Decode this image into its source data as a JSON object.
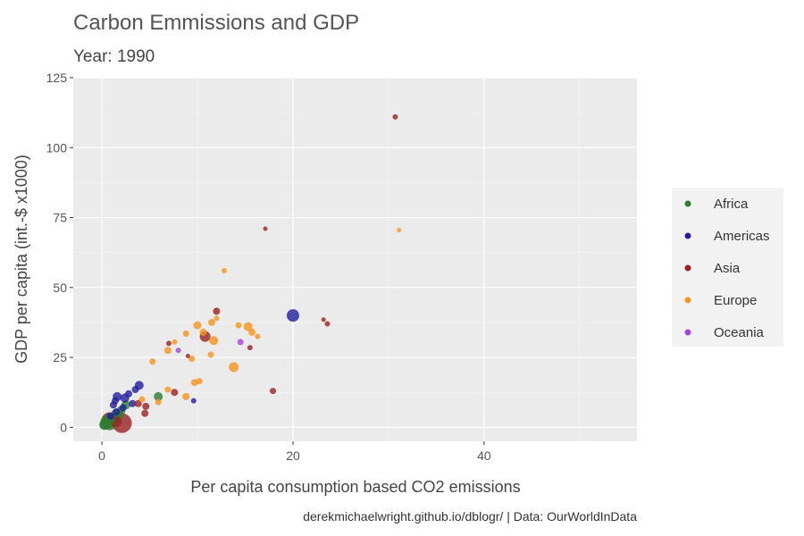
{
  "chart_data": {
    "type": "scatter",
    "title": "Carbon Emmissions and GDP",
    "subtitle": "Year: 1990",
    "xlabel": "Per capita consumption based CO2 emissions",
    "ylabel": "GDP per capita (int.-$ x1000)",
    "caption": "derekmichaelwright.github.io/dblogr/ | Data: OurWorldInData",
    "xlim": [
      -3,
      56
    ],
    "ylim": [
      -5,
      125
    ],
    "x_ticks": [
      0,
      20,
      40
    ],
    "x_tick_labels": [
      "0",
      "20",
      "40"
    ],
    "y_ticks": [
      0,
      25,
      50,
      75,
      100,
      125
    ],
    "y_tick_labels": [
      "0",
      "25",
      "50",
      "75",
      "100",
      "125"
    ],
    "grid": true,
    "legend_position": "right",
    "series": [
      {
        "name": "Africa",
        "color": "#2E7D32",
        "points": [
          {
            "x": 0.3,
            "y": 1,
            "s": 6
          },
          {
            "x": 0.5,
            "y": 2,
            "s": 7
          },
          {
            "x": 0.8,
            "y": 1.5,
            "s": 8
          },
          {
            "x": 1.2,
            "y": 3,
            "s": 6
          },
          {
            "x": 1.6,
            "y": 4.5,
            "s": 7
          },
          {
            "x": 2.0,
            "y": 6,
            "s": 5
          },
          {
            "x": 2.5,
            "y": 8,
            "s": 5
          },
          {
            "x": 0.2,
            "y": 0.8,
            "s": 5
          },
          {
            "x": 5.9,
            "y": 11,
            "s": 5
          },
          {
            "x": 1.0,
            "y": 2.5,
            "s": 4
          },
          {
            "x": 1.8,
            "y": 5,
            "s": 4
          },
          {
            "x": 0.6,
            "y": 3.5,
            "s": 4
          }
        ]
      },
      {
        "name": "Americas",
        "color": "#1F1FA0",
        "points": [
          {
            "x": 20,
            "y": 40,
            "s": 7
          },
          {
            "x": 3.9,
            "y": 15,
            "s": 5
          },
          {
            "x": 1.6,
            "y": 11,
            "s": 5
          },
          {
            "x": 2.4,
            "y": 10.5,
            "s": 5
          },
          {
            "x": 1.2,
            "y": 8,
            "s": 4
          },
          {
            "x": 3.5,
            "y": 13.5,
            "s": 4
          },
          {
            "x": 9.6,
            "y": 9.5,
            "s": 3
          },
          {
            "x": 3.2,
            "y": 8.5,
            "s": 4
          },
          {
            "x": 2.2,
            "y": 7,
            "s": 4
          },
          {
            "x": 1.5,
            "y": 5.5,
            "s": 4
          },
          {
            "x": 0.9,
            "y": 4,
            "s": 4
          },
          {
            "x": 2.8,
            "y": 12,
            "s": 4
          },
          {
            "x": 1.4,
            "y": 9.5,
            "s": 4
          }
        ]
      },
      {
        "name": "Asia",
        "color": "#9B2222",
        "points": [
          {
            "x": 2.1,
            "y": 1.5,
            "s": 11
          },
          {
            "x": 0.8,
            "y": 2.5,
            "s": 9
          },
          {
            "x": 30.7,
            "y": 111,
            "s": 3
          },
          {
            "x": 17.1,
            "y": 71,
            "s": 2.5
          },
          {
            "x": 23.6,
            "y": 37,
            "s": 3
          },
          {
            "x": 23.2,
            "y": 38.5,
            "s": 2.5
          },
          {
            "x": 10.8,
            "y": 32.5,
            "s": 6
          },
          {
            "x": 12,
            "y": 41.5,
            "s": 4
          },
          {
            "x": 7.6,
            "y": 12.5,
            "s": 4
          },
          {
            "x": 17.9,
            "y": 13,
            "s": 3.5
          },
          {
            "x": 15.5,
            "y": 28.5,
            "s": 3
          },
          {
            "x": 7,
            "y": 30,
            "s": 3
          },
          {
            "x": 9.0,
            "y": 25.5,
            "s": 2.5
          },
          {
            "x": 4.5,
            "y": 5,
            "s": 4
          },
          {
            "x": 4.6,
            "y": 7.5,
            "s": 4
          },
          {
            "x": 3.8,
            "y": 8.5,
            "s": 4
          },
          {
            "x": 1.5,
            "y": 2,
            "s": 6
          }
        ]
      },
      {
        "name": "Europe",
        "color": "#F7941D",
        "points": [
          {
            "x": 31.1,
            "y": 70.5,
            "s": 2.5
          },
          {
            "x": 12.8,
            "y": 56,
            "s": 3
          },
          {
            "x": 10,
            "y": 36.5,
            "s": 4.5
          },
          {
            "x": 11.5,
            "y": 37.5,
            "s": 4
          },
          {
            "x": 12,
            "y": 39,
            "s": 3
          },
          {
            "x": 15.3,
            "y": 36,
            "s": 5
          },
          {
            "x": 15.7,
            "y": 34,
            "s": 4
          },
          {
            "x": 16.3,
            "y": 32.5,
            "s": 3
          },
          {
            "x": 14.3,
            "y": 36.5,
            "s": 3.5
          },
          {
            "x": 10.6,
            "y": 34,
            "s": 4
          },
          {
            "x": 11.7,
            "y": 31,
            "s": 5
          },
          {
            "x": 8.8,
            "y": 33.5,
            "s": 3.5
          },
          {
            "x": 6.9,
            "y": 27.5,
            "s": 4
          },
          {
            "x": 7.6,
            "y": 30.5,
            "s": 3
          },
          {
            "x": 5.3,
            "y": 23.5,
            "s": 3.5
          },
          {
            "x": 9.4,
            "y": 24.5,
            "s": 3.5
          },
          {
            "x": 11.4,
            "y": 26,
            "s": 3.5
          },
          {
            "x": 13.8,
            "y": 21.5,
            "s": 5.5
          },
          {
            "x": 9.7,
            "y": 16,
            "s": 4
          },
          {
            "x": 10.2,
            "y": 16.5,
            "s": 3.5
          },
          {
            "x": 6.9,
            "y": 13.5,
            "s": 3.5
          },
          {
            "x": 8.8,
            "y": 11,
            "s": 4
          },
          {
            "x": 5.9,
            "y": 9,
            "s": 3.5
          },
          {
            "x": 4.2,
            "y": 10,
            "s": 3.5
          }
        ]
      },
      {
        "name": "Oceania",
        "color": "#A545D8",
        "points": [
          {
            "x": 14.5,
            "y": 30.5,
            "s": 3.5
          },
          {
            "x": 8.0,
            "y": 27.5,
            "s": 3
          }
        ]
      }
    ]
  }
}
